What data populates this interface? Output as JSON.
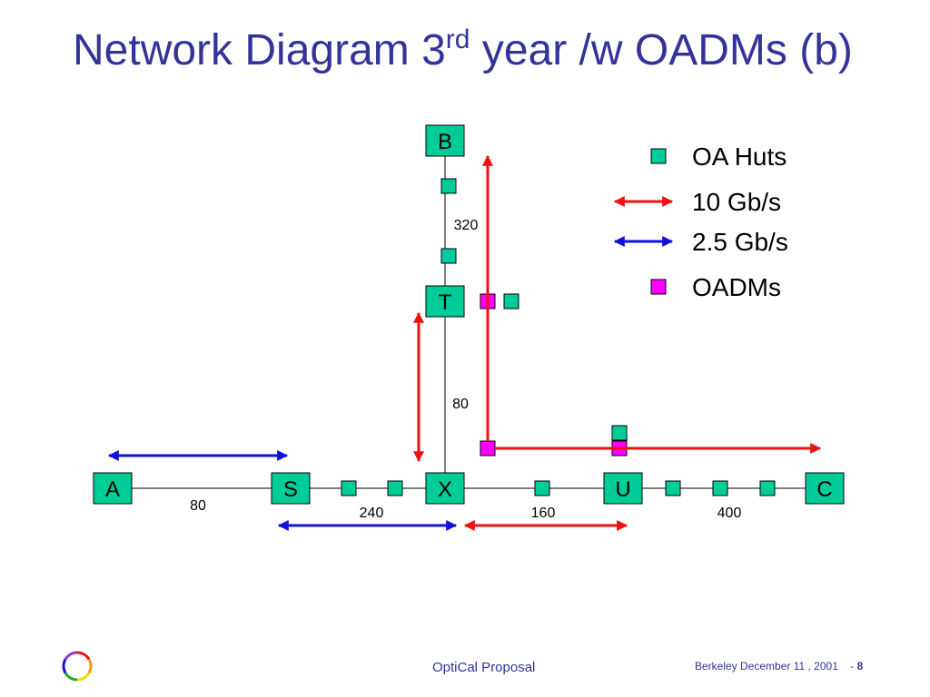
{
  "title": {
    "main": "Network Diagram 3",
    "superscript": "rd",
    "rest": " year /w OADMs (b)"
  },
  "colors": {
    "title": "#33339a",
    "hut": "#00cc99",
    "oadm": "#ff00ff",
    "rate_10": "#ee1111",
    "rate_2_5": "#1111dd",
    "line": "#000000"
  },
  "legend": [
    {
      "symbol": "oa-hut",
      "label": "OA Huts"
    },
    {
      "symbol": "red-arrow",
      "label": "10 Gb/s"
    },
    {
      "symbol": "blue-arrow",
      "label": "2.5 Gb/s"
    },
    {
      "symbol": "oadm",
      "label": "OADMs"
    }
  ],
  "nodes": [
    "B",
    "T",
    "A",
    "S",
    "X",
    "U",
    "C"
  ],
  "links": [
    {
      "from": "A",
      "to": "S",
      "distance": "80"
    },
    {
      "from": "S",
      "to": "X",
      "distance": "240"
    },
    {
      "from": "X",
      "to": "U",
      "distance": "160"
    },
    {
      "from": "U",
      "to": "C",
      "distance": "400"
    },
    {
      "from": "X",
      "to": "T",
      "distance": "80"
    },
    {
      "from": "T",
      "to": "B",
      "distance": "320"
    }
  ],
  "footer": {
    "center": "OptiCal Proposal",
    "right_text": "Berkeley December 11 , 2001",
    "page_prefix": "- ",
    "page": "8"
  }
}
